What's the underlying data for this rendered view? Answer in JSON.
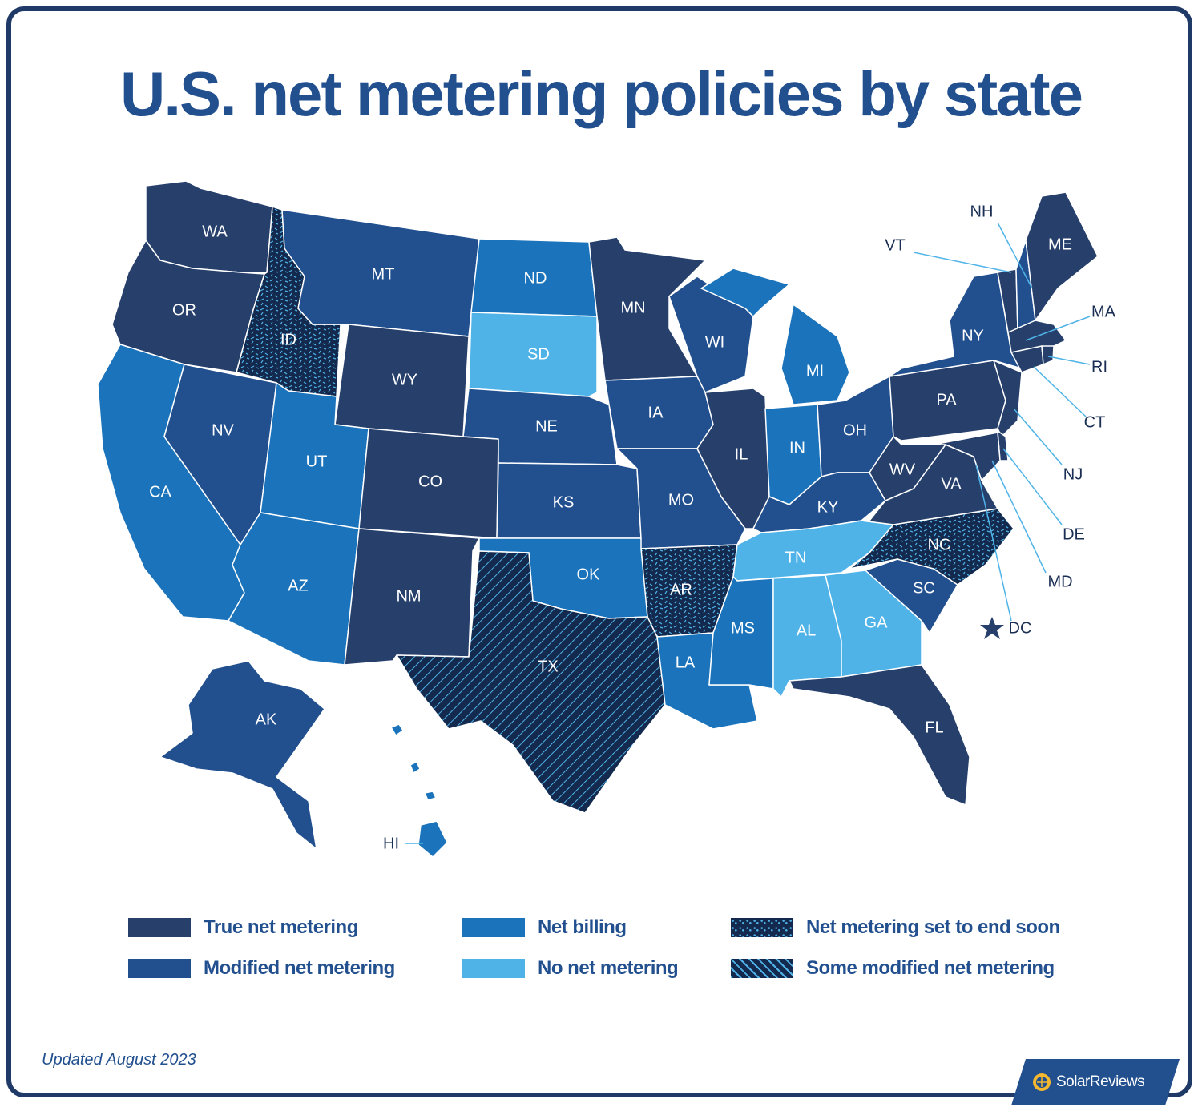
{
  "title": "U.S. net metering policies by state",
  "updated": "Updated August 2023",
  "brand": "SolarReviews",
  "colors": {
    "true": "#263f6b",
    "modified": "#22508f",
    "billing": "#1b74bb",
    "none": "#4fb3e8",
    "ending": "#13294d",
    "some_modified": "#13294d",
    "accent": "#4fb3e8"
  },
  "legend": [
    {
      "key": "true",
      "label": "True net metering"
    },
    {
      "key": "billing",
      "label": "Net billing"
    },
    {
      "key": "ending",
      "label": "Net metering set to end soon"
    },
    {
      "key": "modified",
      "label": "Modified net metering"
    },
    {
      "key": "none",
      "label": "No net metering"
    },
    {
      "key": "some_modified",
      "label": "Some modified net metering"
    }
  ],
  "states": {
    "WA": {
      "label": "WA",
      "category": "true"
    },
    "OR": {
      "label": "OR",
      "category": "true"
    },
    "CA": {
      "label": "CA",
      "category": "billing"
    },
    "NV": {
      "label": "NV",
      "category": "modified"
    },
    "ID": {
      "label": "ID",
      "category": "ending"
    },
    "MT": {
      "label": "MT",
      "category": "modified"
    },
    "WY": {
      "label": "WY",
      "category": "true"
    },
    "UT": {
      "label": "UT",
      "category": "billing"
    },
    "AZ": {
      "label": "AZ",
      "category": "billing"
    },
    "CO": {
      "label": "CO",
      "category": "true"
    },
    "NM": {
      "label": "NM",
      "category": "true"
    },
    "ND": {
      "label": "ND",
      "category": "billing"
    },
    "SD": {
      "label": "SD",
      "category": "none"
    },
    "NE": {
      "label": "NE",
      "category": "modified"
    },
    "KS": {
      "label": "KS",
      "category": "modified"
    },
    "OK": {
      "label": "OK",
      "category": "billing"
    },
    "TX": {
      "label": "TX",
      "category": "some_modified"
    },
    "MN": {
      "label": "MN",
      "category": "true"
    },
    "IA": {
      "label": "IA",
      "category": "modified"
    },
    "MO": {
      "label": "MO",
      "category": "modified"
    },
    "AR": {
      "label": "AR",
      "category": "ending"
    },
    "LA": {
      "label": "LA",
      "category": "billing"
    },
    "WI": {
      "label": "WI",
      "category": "modified"
    },
    "IL": {
      "label": "IL",
      "category": "true"
    },
    "MI": {
      "label": "MI",
      "category": "billing"
    },
    "IN": {
      "label": "IN",
      "category": "billing"
    },
    "OH": {
      "label": "OH",
      "category": "modified"
    },
    "KY": {
      "label": "KY",
      "category": "modified"
    },
    "TN": {
      "label": "TN",
      "category": "none"
    },
    "MS": {
      "label": "MS",
      "category": "billing"
    },
    "AL": {
      "label": "AL",
      "category": "none"
    },
    "GA": {
      "label": "GA",
      "category": "none"
    },
    "FL": {
      "label": "FL",
      "category": "true"
    },
    "SC": {
      "label": "SC",
      "category": "modified"
    },
    "NC": {
      "label": "NC",
      "category": "ending"
    },
    "VA": {
      "label": "VA",
      "category": "true"
    },
    "WV": {
      "label": "WV",
      "category": "true"
    },
    "PA": {
      "label": "PA",
      "category": "true"
    },
    "NY": {
      "label": "NY",
      "category": "modified"
    },
    "ME": {
      "label": "ME",
      "category": "true"
    },
    "NJ": {
      "label": "NJ",
      "category": "true"
    },
    "DE": {
      "label": "DE",
      "category": "true"
    },
    "MD": {
      "label": "MD",
      "category": "true"
    },
    "DC": {
      "label": "DC",
      "category": "true"
    },
    "VT": {
      "label": "VT",
      "category": "true"
    },
    "NH": {
      "label": "NH",
      "category": "modified"
    },
    "MA": {
      "label": "MA",
      "category": "true"
    },
    "RI": {
      "label": "RI",
      "category": "true"
    },
    "CT": {
      "label": "CT",
      "category": "true"
    },
    "AK": {
      "label": "AK",
      "category": "modified"
    },
    "HI": {
      "label": "HI",
      "category": "billing"
    }
  }
}
